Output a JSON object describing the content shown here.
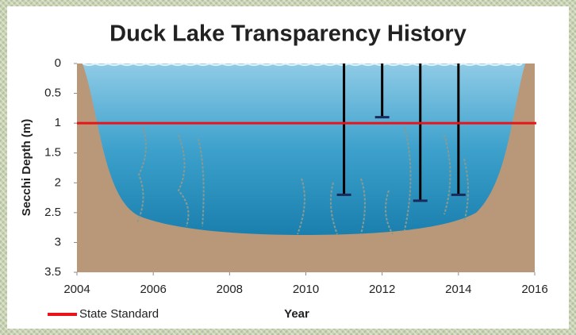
{
  "chart_data": {
    "type": "bar",
    "title": "Duck Lake Transparency History",
    "x_label": "Year",
    "y_label": "Secchi Depth (m)",
    "x": [
      2011,
      2012,
      2013,
      2014
    ],
    "values": [
      2.2,
      0.9,
      2.3,
      2.2
    ],
    "color": "#000000",
    "xlim": [
      2004,
      2016
    ],
    "xticks": [
      2004,
      2006,
      2008,
      2010,
      2012,
      2014,
      2016
    ],
    "ylim": [
      0,
      3.5
    ],
    "yticks": [
      0,
      0.5,
      1,
      1.5,
      2,
      2.5,
      3,
      3.5
    ],
    "y_inverted": true,
    "reference_lines": [
      {
        "name": "State Standard",
        "value": 1,
        "color": "#e8141b"
      }
    ],
    "legend": "bottom-left"
  }
}
